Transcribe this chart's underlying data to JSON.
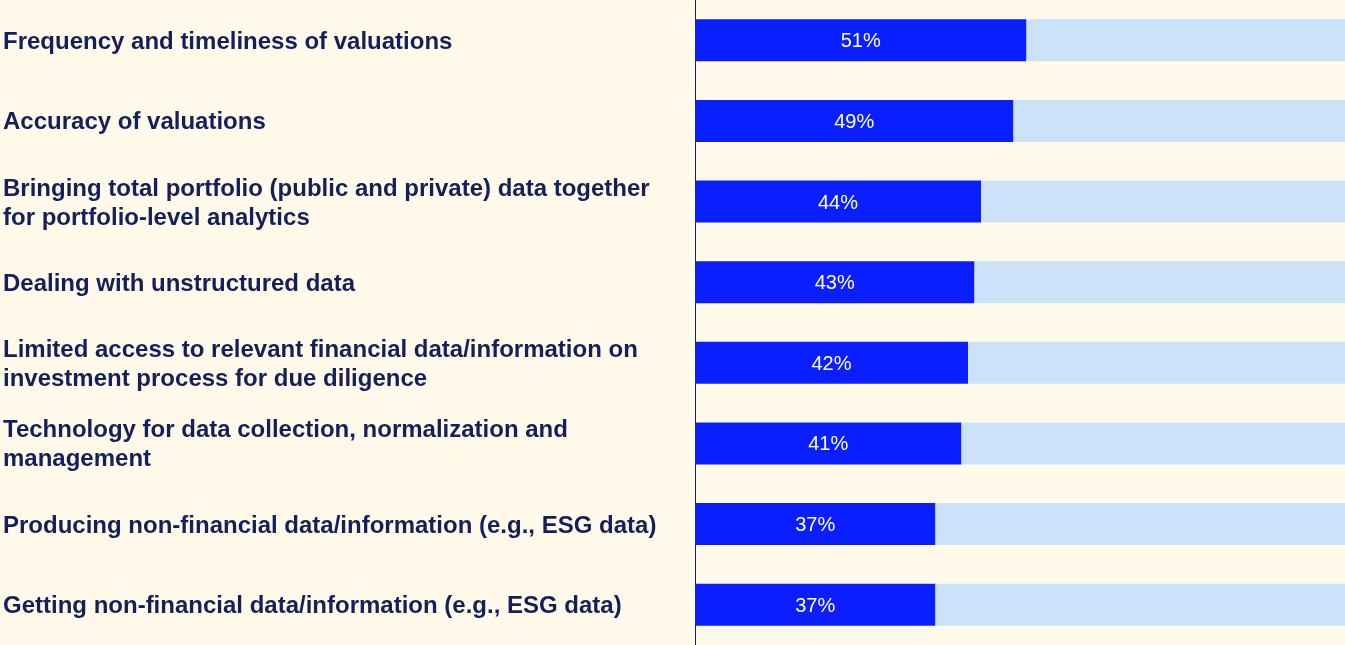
{
  "chart_data": {
    "type": "bar",
    "orientation": "horizontal",
    "stacked": true,
    "categories": [
      "Frequency and timeliness of valuations",
      "Accuracy of valuations",
      "Bringing total portfolio (public and private) data together for portfolio-level analytics",
      "Dealing with unstructured data",
      "Limited access to relevant financial data/information on investment process for due diligence",
      "Technology for data collection, normalization and management",
      "Producing non-financial data/information (e.g., ESG data)",
      "Getting non-financial data/information (e.g., ESG data)"
    ],
    "series": [
      {
        "color": "#0a1fff",
        "values": [
          51,
          49,
          44,
          43,
          42,
          41,
          37,
          37
        ],
        "value_labels": [
          "51%",
          "49%",
          "44%",
          "43%",
          "42%",
          "41%",
          "37%",
          "37%"
        ]
      },
      {
        "color": "#cce2f8",
        "values": [
          49,
          51,
          56,
          57,
          58,
          59,
          63,
          63
        ]
      }
    ],
    "tick_labels": "y"
  }
}
